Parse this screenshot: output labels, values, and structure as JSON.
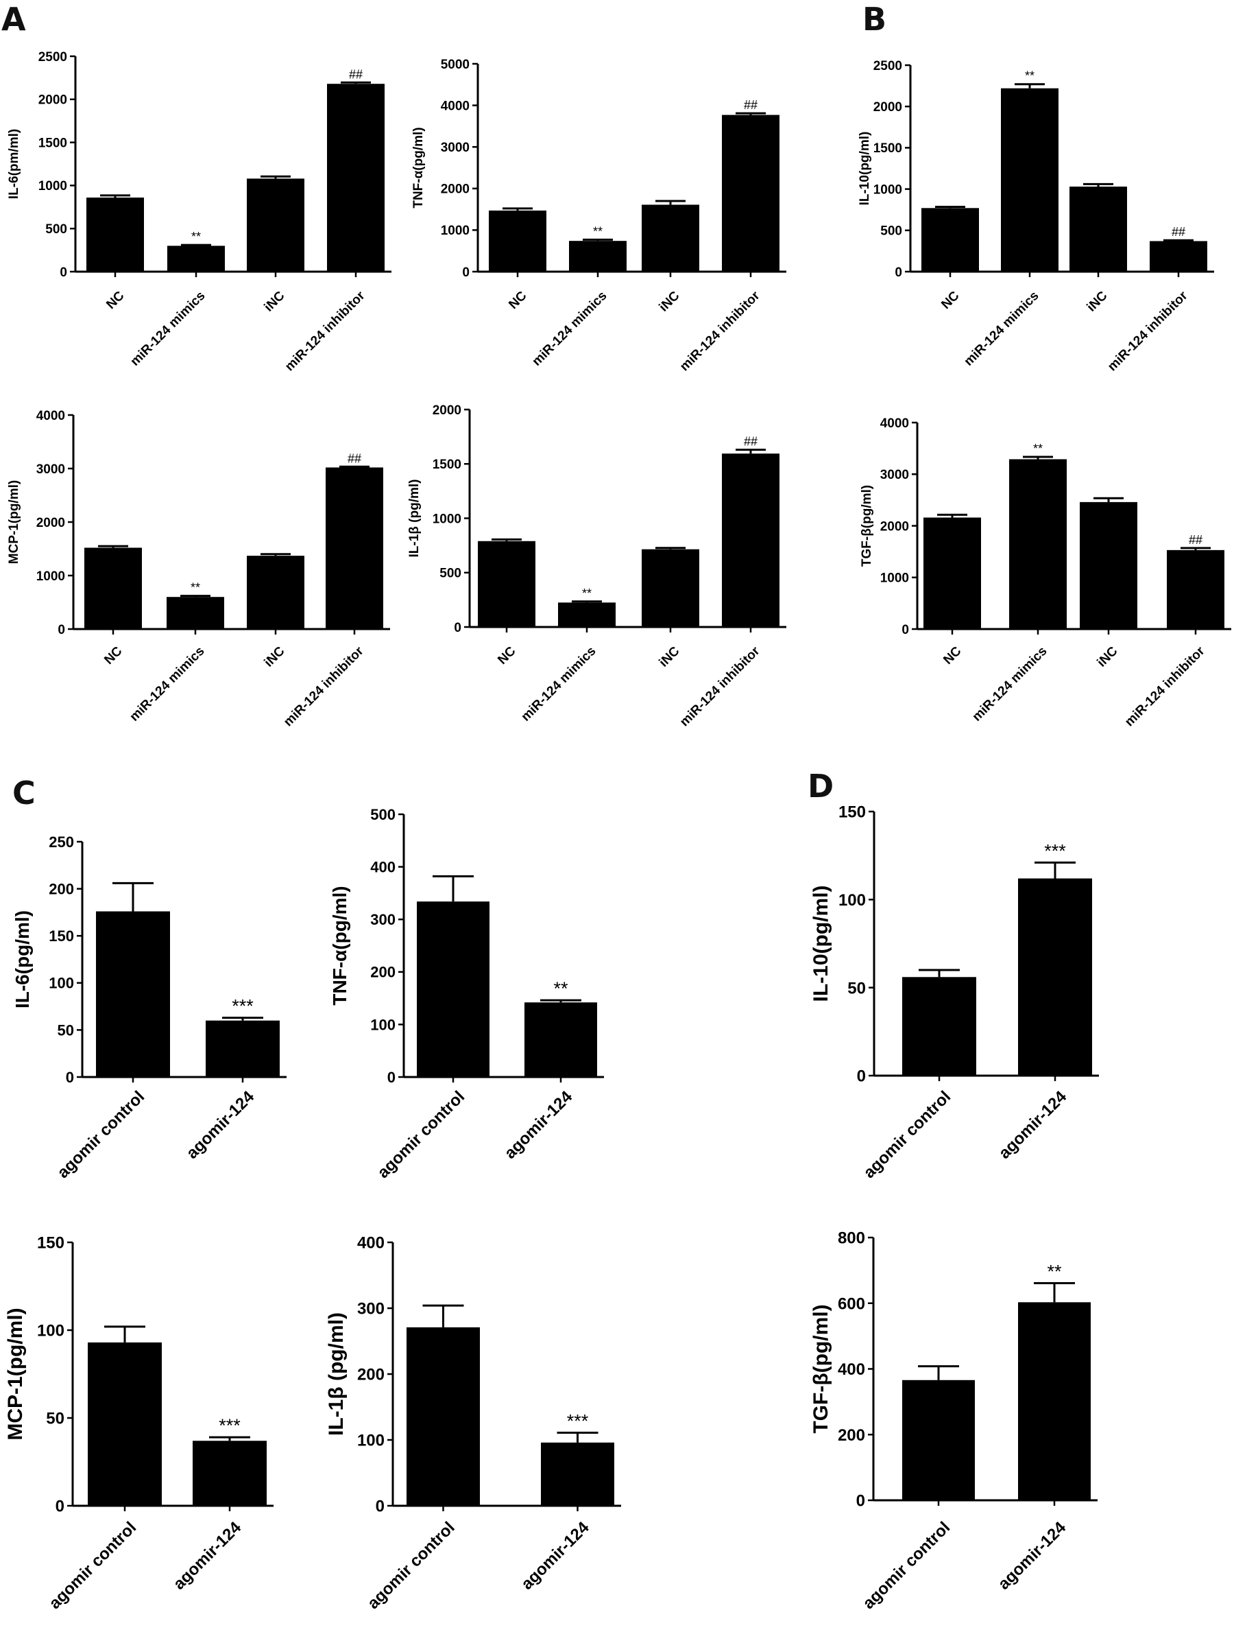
{
  "panel_labels": [
    "A",
    "B",
    "C",
    "D"
  ],
  "chart_data": [
    {
      "panel": "A",
      "type": "bar",
      "categories": [
        "NC",
        "miR-124 mimics",
        "iNC",
        "miR-124 inhibitor"
      ],
      "values": [
        860,
        300,
        1080,
        2180
      ],
      "errors": [
        25,
        10,
        25,
        15
      ],
      "significance": [
        "",
        "**",
        "",
        "##"
      ],
      "ylabel": "IL-6(pm/ml)",
      "ylim": [
        0,
        2500
      ],
      "yticks": [
        0,
        500,
        1000,
        1500,
        2000,
        2500
      ],
      "xlabel": "",
      "grid": false
    },
    {
      "panel": "A",
      "type": "bar",
      "categories": [
        "NC",
        "miR-124 mimics",
        "iNC",
        "miR-124 inhibitor"
      ],
      "values": [
        1470,
        740,
        1610,
        3770
      ],
      "errors": [
        50,
        30,
        90,
        40
      ],
      "significance": [
        "",
        "**",
        "",
        "##"
      ],
      "ylabel": "TNF-α(pg/ml)",
      "ylim": [
        0,
        5000
      ],
      "yticks": [
        0,
        1000,
        2000,
        3000,
        4000,
        5000
      ],
      "xlabel": "",
      "grid": false
    },
    {
      "panel": "B",
      "type": "bar",
      "categories": [
        "NC",
        "miR-124 mimics",
        "iNC",
        "miR-124 inhibitor"
      ],
      "values": [
        770,
        2220,
        1030,
        370
      ],
      "errors": [
        15,
        50,
        30,
        10
      ],
      "significance": [
        "",
        "**",
        "",
        "##"
      ],
      "ylabel": "IL-10(pg/ml)",
      "ylim": [
        0,
        2500
      ],
      "yticks": [
        0,
        500,
        1000,
        1500,
        2000,
        2500
      ],
      "xlabel": "",
      "grid": false
    },
    {
      "panel": "A",
      "type": "bar",
      "categories": [
        "NC",
        "miR-124 mimics",
        "iNC",
        "miR-124 inhibitor"
      ],
      "values": [
        1520,
        600,
        1370,
        3020
      ],
      "errors": [
        30,
        20,
        30,
        15
      ],
      "significance": [
        "",
        "**",
        "",
        "##"
      ],
      "ylabel": "MCP-1(pg/ml)",
      "ylim": [
        0,
        4000
      ],
      "yticks": [
        0,
        1000,
        2000,
        3000,
        4000
      ],
      "xlabel": "",
      "grid": false
    },
    {
      "panel": "A",
      "type": "bar",
      "categories": [
        "NC",
        "miR-124 mimics",
        "iNC",
        "miR-124 inhibitor"
      ],
      "values": [
        790,
        225,
        715,
        1595
      ],
      "errors": [
        15,
        10,
        12,
        35
      ],
      "significance": [
        "",
        "**",
        "",
        "##"
      ],
      "ylabel": "IL-1β (pg/ml)",
      "ylim": [
        0,
        2000
      ],
      "yticks": [
        0,
        500,
        1000,
        1500,
        2000
      ],
      "xlabel": "",
      "grid": false
    },
    {
      "panel": "B",
      "type": "bar",
      "categories": [
        "NC",
        "miR-124 mimics",
        "iNC",
        "miR-124 inhibitor"
      ],
      "values": [
        2160,
        3290,
        2460,
        1530
      ],
      "errors": [
        55,
        45,
        75,
        40
      ],
      "significance": [
        "",
        "**",
        "",
        "##"
      ],
      "ylabel": "TGF-β(pg/ml)",
      "ylim": [
        0,
        4000
      ],
      "yticks": [
        0,
        1000,
        2000,
        3000,
        4000
      ],
      "xlabel": "",
      "grid": false
    },
    {
      "panel": "C",
      "type": "bar",
      "categories": [
        "agomir control",
        "agomir-124"
      ],
      "values": [
        176,
        60
      ],
      "errors": [
        30,
        3
      ],
      "significance": [
        "",
        "***"
      ],
      "ylabel": "IL-6(pg/ml)",
      "ylim": [
        0,
        250
      ],
      "yticks": [
        0,
        50,
        100,
        150,
        200,
        250
      ],
      "xlabel": "",
      "grid": false
    },
    {
      "panel": "C",
      "type": "bar",
      "categories": [
        "agomir control",
        "agomir-124"
      ],
      "values": [
        334,
        142
      ],
      "errors": [
        48,
        4
      ],
      "significance": [
        "",
        "**"
      ],
      "ylabel": "TNF-α(pg/ml)",
      "ylim": [
        0,
        500
      ],
      "yticks": [
        0,
        100,
        200,
        300,
        400,
        500
      ],
      "xlabel": "",
      "grid": false
    },
    {
      "panel": "D",
      "type": "bar",
      "categories": [
        "agomir control",
        "agomir-124"
      ],
      "values": [
        56,
        112
      ],
      "errors": [
        4,
        9
      ],
      "significance": [
        "",
        "***"
      ],
      "ylabel": "IL-10(pg/ml)",
      "ylim": [
        0,
        150
      ],
      "yticks": [
        0,
        50,
        100,
        150
      ],
      "xlabel": "",
      "grid": false
    },
    {
      "panel": "C",
      "type": "bar",
      "categories": [
        "agomir control",
        "agomir-124"
      ],
      "values": [
        93,
        37
      ],
      "errors": [
        9,
        2
      ],
      "significance": [
        "",
        "***"
      ],
      "ylabel": "MCP-1(pg/ml)",
      "ylim": [
        0,
        150
      ],
      "yticks": [
        0,
        50,
        100,
        150
      ],
      "xlabel": "",
      "grid": false
    },
    {
      "panel": "C",
      "type": "bar",
      "categories": [
        "agomir control",
        "agomir-124"
      ],
      "values": [
        271,
        96
      ],
      "errors": [
        33,
        15
      ],
      "significance": [
        "",
        "***"
      ],
      "ylabel": "IL-1β (pg/ml)",
      "ylim": [
        0,
        400
      ],
      "yticks": [
        0,
        100,
        200,
        300,
        400
      ],
      "xlabel": "",
      "grid": false
    },
    {
      "panel": "D",
      "type": "bar",
      "categories": [
        "agomir control",
        "agomir-124"
      ],
      "values": [
        366,
        603
      ],
      "errors": [
        42,
        58
      ],
      "significance": [
        "",
        "**"
      ],
      "ylabel": "TGF-β(pg/ml)",
      "ylim": [
        0,
        800
      ],
      "yticks": [
        0,
        200,
        400,
        600,
        800
      ],
      "xlabel": "",
      "grid": false
    }
  ]
}
